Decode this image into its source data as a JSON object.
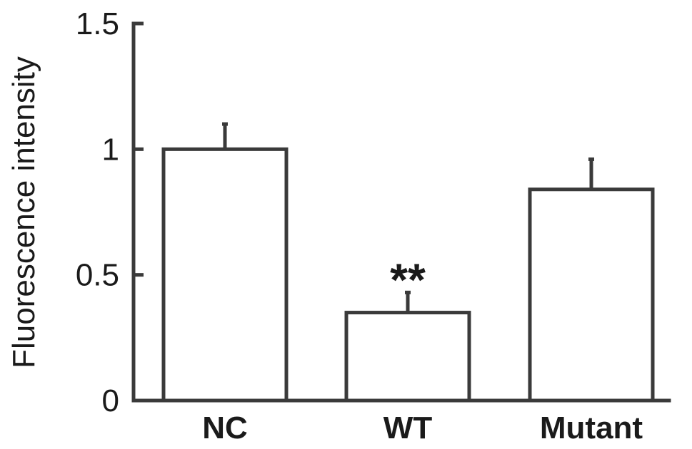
{
  "chart_data": {
    "type": "bar",
    "categories": [
      "NC",
      "WT",
      "Mutant"
    ],
    "values": [
      1.0,
      0.35,
      0.84
    ],
    "error": [
      0.1,
      0.08,
      0.12
    ],
    "annotations": [
      {
        "category": "WT",
        "text": "**"
      }
    ],
    "title": "",
    "xlabel": "",
    "ylabel": "Fluorescence intensity",
    "ylim": [
      0,
      1.5
    ],
    "yticks": [
      0,
      0.5,
      1,
      1.5
    ],
    "ytick_labels": [
      "0",
      "0.5",
      "1",
      "1.5"
    ],
    "grid": false,
    "colors": {
      "bar_fill": "#ffffff",
      "bar_stroke": "#3a3a3a",
      "text": "#1a1a1a"
    }
  }
}
